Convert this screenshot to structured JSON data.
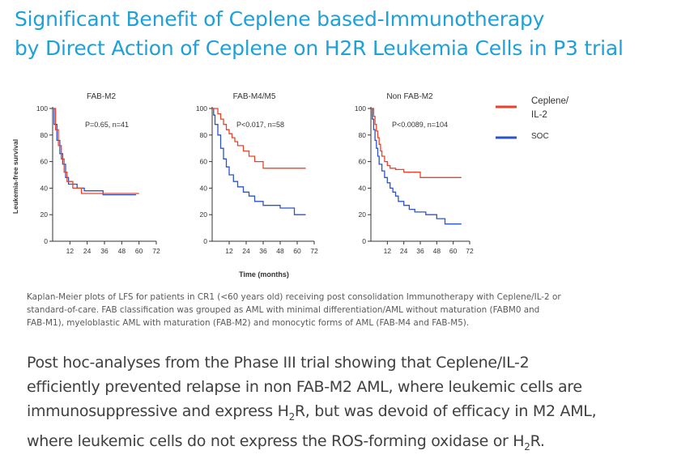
{
  "title": {
    "line1": "Significant Benefit of Ceplene based-Immunotherapy",
    "line2": "by Direct Action of Ceplene on H2R Leukemia Cells in P3 trial"
  },
  "colors": {
    "title": "#1ea0d8",
    "ceplene": "#e8432a",
    "soc": "#2a55c8"
  },
  "chart_data": [
    {
      "type": "line",
      "title": "FAB-M2",
      "annotation": "P=0.65, n=41",
      "ylabel": "Leukemia-free survival",
      "xlabel": "Time (months)",
      "xticks": [
        12,
        24,
        36,
        48,
        60,
        72
      ],
      "yticks": [
        0,
        20,
        40,
        60,
        80,
        100
      ],
      "xlim": [
        0,
        72
      ],
      "ylim": [
        0,
        100
      ],
      "series": [
        {
          "name": "Ceplene/ IL-2",
          "color": "#e8432a",
          "x": [
            0,
            2,
            2,
            4,
            4,
            6,
            6,
            8,
            8,
            10,
            10,
            14,
            14,
            20,
            20,
            28,
            28,
            60
          ],
          "y": [
            100,
            100,
            84,
            84,
            72,
            72,
            62,
            62,
            52,
            52,
            45,
            45,
            40,
            40,
            36,
            36,
            36,
            36
          ]
        },
        {
          "name": "SOC",
          "color": "#2a55c8",
          "x": [
            0,
            1,
            1,
            3,
            3,
            5,
            5,
            7,
            7,
            9,
            9,
            11,
            11,
            17,
            17,
            22,
            22,
            35,
            35,
            58
          ],
          "y": [
            100,
            100,
            88,
            88,
            76,
            76,
            66,
            66,
            58,
            58,
            48,
            48,
            43,
            43,
            40,
            40,
            38,
            38,
            35,
            35
          ]
        }
      ]
    },
    {
      "type": "line",
      "title": "FAB-M4/M5",
      "annotation": "P<0.017, n=58",
      "xticks": [
        12,
        24,
        36,
        48,
        60,
        72
      ],
      "yticks": [
        0,
        20,
        40,
        60,
        80,
        100
      ],
      "xlim": [
        0,
        72
      ],
      "ylim": [
        0,
        100
      ],
      "series": [
        {
          "name": "Ceplene/ IL-2",
          "color": "#e8432a",
          "x": [
            0,
            4,
            4,
            6,
            6,
            8,
            8,
            10,
            10,
            12,
            12,
            14,
            14,
            16,
            16,
            18,
            18,
            22,
            22,
            26,
            26,
            30,
            30,
            36,
            36,
            66
          ],
          "y": [
            100,
            100,
            96,
            96,
            92,
            92,
            88,
            88,
            84,
            84,
            81,
            81,
            78,
            78,
            75,
            75,
            72,
            72,
            68,
            68,
            64,
            64,
            60,
            60,
            55,
            55
          ]
        },
        {
          "name": "SOC",
          "color": "#2a55c8",
          "x": [
            0,
            1,
            1,
            2,
            2,
            4,
            4,
            6,
            6,
            8,
            8,
            10,
            10,
            12,
            12,
            15,
            15,
            18,
            18,
            22,
            22,
            26,
            26,
            30,
            30,
            36,
            36,
            48,
            48,
            58,
            58,
            66
          ],
          "y": [
            100,
            100,
            95,
            95,
            88,
            88,
            80,
            80,
            70,
            70,
            62,
            62,
            56,
            56,
            50,
            50,
            45,
            45,
            41,
            41,
            37,
            37,
            34,
            34,
            30,
            30,
            27,
            27,
            25,
            25,
            20,
            20
          ]
        }
      ]
    },
    {
      "type": "line",
      "title": "Non FAB-M2",
      "annotation": "P<0.0089, n=104",
      "xticks": [
        12,
        24,
        36,
        48,
        60,
        72
      ],
      "yticks": [
        0,
        20,
        40,
        60,
        80,
        100
      ],
      "xlim": [
        0,
        72
      ],
      "ylim": [
        0,
        100
      ],
      "series": [
        {
          "name": "Ceplene/ IL-2",
          "color": "#e8432a",
          "x": [
            0,
            2,
            2,
            3,
            3,
            4,
            4,
            5,
            5,
            6,
            6,
            7,
            7,
            8,
            8,
            10,
            10,
            12,
            12,
            14,
            14,
            18,
            18,
            24,
            24,
            36,
            36,
            66
          ],
          "y": [
            100,
            100,
            94,
            94,
            88,
            88,
            83,
            83,
            78,
            78,
            73,
            73,
            68,
            68,
            64,
            64,
            60,
            60,
            57,
            57,
            55,
            55,
            54,
            54,
            52,
            52,
            48,
            48
          ]
        },
        {
          "name": "SOC",
          "color": "#2a55c8",
          "x": [
            0,
            1,
            1,
            2,
            2,
            3,
            3,
            4,
            4,
            5,
            5,
            6,
            6,
            8,
            8,
            10,
            10,
            12,
            12,
            14,
            14,
            16,
            16,
            18,
            18,
            20,
            20,
            24,
            24,
            28,
            28,
            32,
            32,
            40,
            40,
            48,
            48,
            54,
            54,
            66
          ],
          "y": [
            100,
            100,
            92,
            92,
            84,
            84,
            76,
            76,
            70,
            70,
            64,
            64,
            58,
            58,
            53,
            53,
            48,
            48,
            44,
            44,
            40,
            40,
            37,
            37,
            34,
            34,
            30,
            30,
            27,
            27,
            24,
            24,
            22,
            22,
            20,
            20,
            17,
            17,
            13,
            13
          ]
        }
      ]
    }
  ],
  "legend": [
    {
      "label_line1": "Ceplene/",
      "label_line2": "IL-2",
      "color": "#e8432a"
    },
    {
      "label_line1": "SOC",
      "label_line2": "",
      "color": "#2a55c8"
    }
  ],
  "caption": {
    "line1": "Kaplan-Meier plots of LFS for patients in CR1 (<60 years old) receiving post consolidation Immunotherapy with Ceplene/IL-2 or",
    "line2": "standard-of-care. FAB classification was grouped as AML with minimal differentiation/AML without maturation (FABM0 and",
    "line3": "FAB-M1), myeloblastic AML with maturation (FAB-M2) and monocytic forms of AML (FAB-M4 and FAB-M5)."
  },
  "summary": {
    "line1": "Post hoc-analyses from the Phase III trial showing that Ceplene/IL-2",
    "line2": "efficiently prevented relapse in non FAB-M2 AML, where leukemic cells are",
    "line3a": "immunosuppressive and express H",
    "line3sub": "2",
    "line3b": "R, but was devoid of efficacy in M2 AML,",
    "line4a": "where leukemic cells do not express the ROS-forming oxidase or H",
    "line4sub": "2",
    "line4b": "R."
  }
}
